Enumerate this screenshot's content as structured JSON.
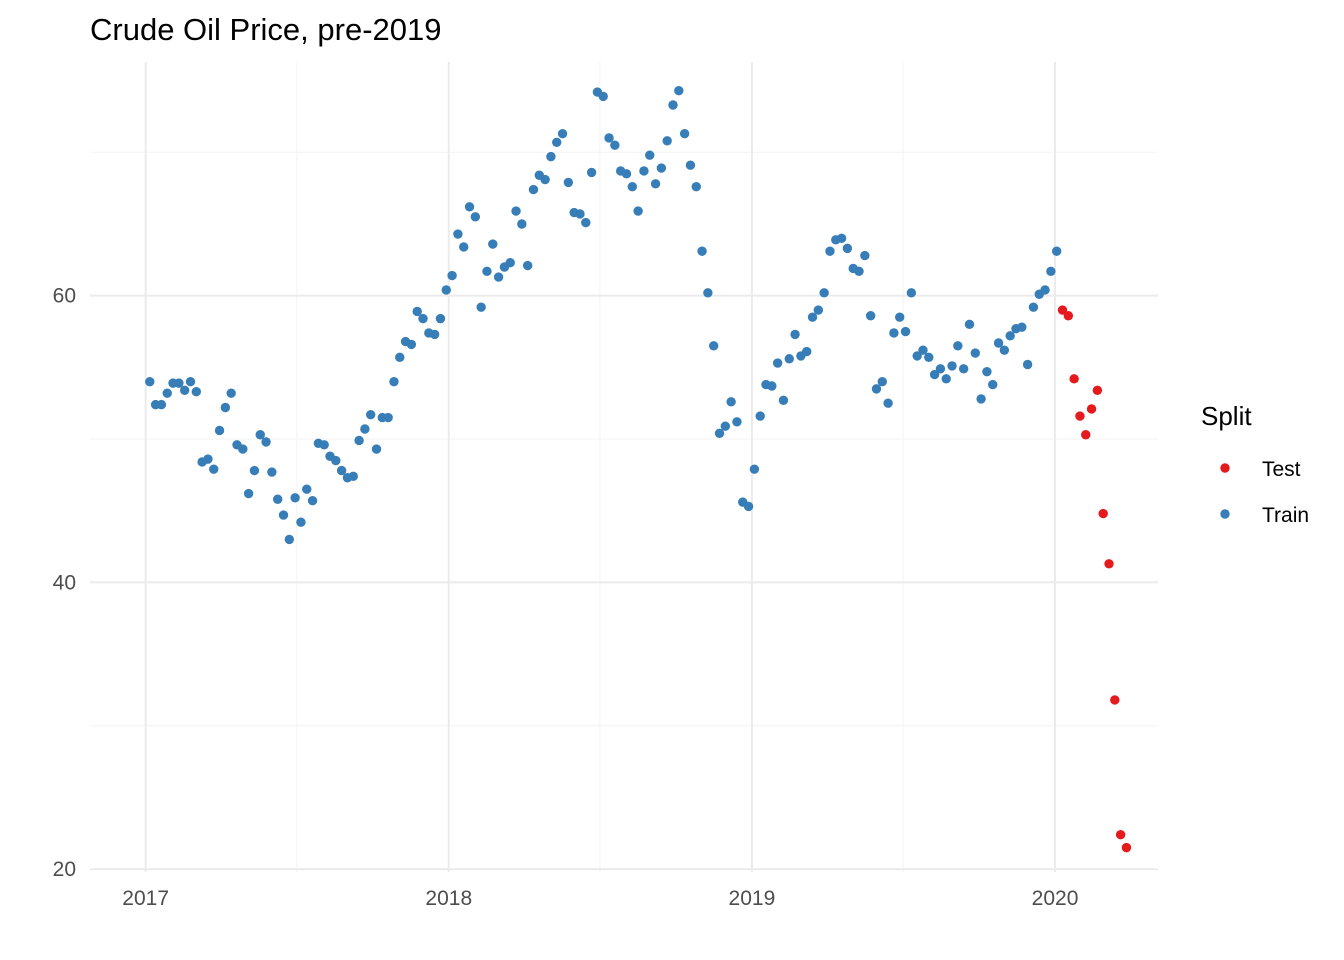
{
  "chart_data": {
    "type": "scatter",
    "title": "Crude Oil Price, pre-2019",
    "xlabel": "",
    "ylabel": "",
    "x_axis": {
      "type": "date",
      "range": [
        "2016-10-26",
        "2020-05-04"
      ],
      "ticks": [
        "2017",
        "2018",
        "2019",
        "2020"
      ]
    },
    "y_axis": {
      "range": [
        19.8,
        76.3
      ],
      "ticks": [
        20,
        40,
        60
      ]
    },
    "grid": true,
    "legend": {
      "title": "Split",
      "position": "right"
    },
    "series": [
      {
        "name": "Train",
        "color": "#377eb8",
        "points": [
          [
            "2017-01-06",
            54.0
          ],
          [
            "2017-01-13",
            52.4
          ],
          [
            "2017-01-20",
            52.4
          ],
          [
            "2017-01-27",
            53.2
          ],
          [
            "2017-02-03",
            53.9
          ],
          [
            "2017-02-10",
            53.9
          ],
          [
            "2017-02-17",
            53.4
          ],
          [
            "2017-02-24",
            54.0
          ],
          [
            "2017-03-03",
            53.3
          ],
          [
            "2017-03-10",
            48.4
          ],
          [
            "2017-03-17",
            48.6
          ],
          [
            "2017-03-24",
            47.9
          ],
          [
            "2017-03-31",
            50.6
          ],
          [
            "2017-04-07",
            52.2
          ],
          [
            "2017-04-14",
            53.2
          ],
          [
            "2017-04-21",
            49.6
          ],
          [
            "2017-04-28",
            49.3
          ],
          [
            "2017-05-05",
            46.2
          ],
          [
            "2017-05-12",
            47.8
          ],
          [
            "2017-05-19",
            50.3
          ],
          [
            "2017-05-26",
            49.8
          ],
          [
            "2017-06-02",
            47.7
          ],
          [
            "2017-06-09",
            45.8
          ],
          [
            "2017-06-16",
            44.7
          ],
          [
            "2017-06-23",
            43.0
          ],
          [
            "2017-06-30",
            45.9
          ],
          [
            "2017-07-07",
            44.2
          ],
          [
            "2017-07-14",
            46.5
          ],
          [
            "2017-07-21",
            45.7
          ],
          [
            "2017-07-28",
            49.7
          ],
          [
            "2017-08-04",
            49.6
          ],
          [
            "2017-08-11",
            48.8
          ],
          [
            "2017-08-18",
            48.5
          ],
          [
            "2017-08-25",
            47.8
          ],
          [
            "2017-09-01",
            47.3
          ],
          [
            "2017-09-08",
            47.4
          ],
          [
            "2017-09-15",
            49.9
          ],
          [
            "2017-09-22",
            50.7
          ],
          [
            "2017-09-29",
            51.7
          ],
          [
            "2017-10-06",
            49.3
          ],
          [
            "2017-10-13",
            51.5
          ],
          [
            "2017-10-20",
            51.5
          ],
          [
            "2017-10-27",
            54.0
          ],
          [
            "2017-11-03",
            55.7
          ],
          [
            "2017-11-10",
            56.8
          ],
          [
            "2017-11-17",
            56.6
          ],
          [
            "2017-11-24",
            58.9
          ],
          [
            "2017-12-01",
            58.4
          ],
          [
            "2017-12-08",
            57.4
          ],
          [
            "2017-12-15",
            57.3
          ],
          [
            "2017-12-22",
            58.4
          ],
          [
            "2017-12-29",
            60.4
          ],
          [
            "2018-01-05",
            61.4
          ],
          [
            "2018-01-12",
            64.3
          ],
          [
            "2018-01-19",
            63.4
          ],
          [
            "2018-01-26",
            66.2
          ],
          [
            "2018-02-02",
            65.5
          ],
          [
            "2018-02-09",
            59.2
          ],
          [
            "2018-02-16",
            61.7
          ],
          [
            "2018-02-23",
            63.6
          ],
          [
            "2018-03-02",
            61.3
          ],
          [
            "2018-03-09",
            62.0
          ],
          [
            "2018-03-16",
            62.3
          ],
          [
            "2018-03-23",
            65.9
          ],
          [
            "2018-03-30",
            65.0
          ],
          [
            "2018-04-06",
            62.1
          ],
          [
            "2018-04-13",
            67.4
          ],
          [
            "2018-04-20",
            68.4
          ],
          [
            "2018-04-27",
            68.1
          ],
          [
            "2018-05-04",
            69.7
          ],
          [
            "2018-05-11",
            70.7
          ],
          [
            "2018-05-18",
            71.3
          ],
          [
            "2018-05-25",
            67.9
          ],
          [
            "2018-06-01",
            65.8
          ],
          [
            "2018-06-08",
            65.7
          ],
          [
            "2018-06-15",
            65.1
          ],
          [
            "2018-06-22",
            68.6
          ],
          [
            "2018-06-29",
            74.2
          ],
          [
            "2018-07-06",
            73.9
          ],
          [
            "2018-07-13",
            71.0
          ],
          [
            "2018-07-20",
            70.5
          ],
          [
            "2018-07-27",
            68.7
          ],
          [
            "2018-08-03",
            68.5
          ],
          [
            "2018-08-10",
            67.6
          ],
          [
            "2018-08-17",
            65.9
          ],
          [
            "2018-08-24",
            68.7
          ],
          [
            "2018-08-31",
            69.8
          ],
          [
            "2018-09-07",
            67.8
          ],
          [
            "2018-09-14",
            68.9
          ],
          [
            "2018-09-21",
            70.8
          ],
          [
            "2018-09-28",
            73.3
          ],
          [
            "2018-10-05",
            74.3
          ],
          [
            "2018-10-12",
            71.3
          ],
          [
            "2018-10-19",
            69.1
          ],
          [
            "2018-10-26",
            67.6
          ],
          [
            "2018-11-02",
            63.1
          ],
          [
            "2018-11-09",
            60.2
          ],
          [
            "2018-11-16",
            56.5
          ],
          [
            "2018-11-23",
            50.4
          ],
          [
            "2018-11-30",
            50.9
          ],
          [
            "2018-12-07",
            52.6
          ],
          [
            "2018-12-14",
            51.2
          ],
          [
            "2018-12-21",
            45.6
          ],
          [
            "2018-12-28",
            45.3
          ],
          [
            "2019-01-04",
            47.9
          ],
          [
            "2019-01-11",
            51.6
          ],
          [
            "2019-01-18",
            53.8
          ],
          [
            "2019-01-25",
            53.7
          ],
          [
            "2019-02-01",
            55.3
          ],
          [
            "2019-02-08",
            52.7
          ],
          [
            "2019-02-15",
            55.6
          ],
          [
            "2019-02-22",
            57.3
          ],
          [
            "2019-03-01",
            55.8
          ],
          [
            "2019-03-08",
            56.1
          ],
          [
            "2019-03-15",
            58.5
          ],
          [
            "2019-03-22",
            59.0
          ],
          [
            "2019-03-29",
            60.2
          ],
          [
            "2019-04-05",
            63.1
          ],
          [
            "2019-04-12",
            63.9
          ],
          [
            "2019-04-19",
            64.0
          ],
          [
            "2019-04-26",
            63.3
          ],
          [
            "2019-05-03",
            61.9
          ],
          [
            "2019-05-10",
            61.7
          ],
          [
            "2019-05-17",
            62.8
          ],
          [
            "2019-05-24",
            58.6
          ],
          [
            "2019-05-31",
            53.5
          ],
          [
            "2019-06-07",
            54.0
          ],
          [
            "2019-06-14",
            52.5
          ],
          [
            "2019-06-21",
            57.4
          ],
          [
            "2019-06-28",
            58.5
          ],
          [
            "2019-07-05",
            57.5
          ],
          [
            "2019-07-12",
            60.2
          ],
          [
            "2019-07-19",
            55.8
          ],
          [
            "2019-07-26",
            56.2
          ],
          [
            "2019-08-02",
            55.7
          ],
          [
            "2019-08-09",
            54.5
          ],
          [
            "2019-08-16",
            54.9
          ],
          [
            "2019-08-23",
            54.2
          ],
          [
            "2019-08-30",
            55.1
          ],
          [
            "2019-09-06",
            56.5
          ],
          [
            "2019-09-13",
            54.9
          ],
          [
            "2019-09-20",
            58.0
          ],
          [
            "2019-09-27",
            56.0
          ],
          [
            "2019-10-04",
            52.8
          ],
          [
            "2019-10-11",
            54.7
          ],
          [
            "2019-10-18",
            53.8
          ],
          [
            "2019-10-25",
            56.7
          ],
          [
            "2019-11-01",
            56.2
          ],
          [
            "2019-11-08",
            57.2
          ],
          [
            "2019-11-15",
            57.7
          ],
          [
            "2019-11-22",
            57.8
          ],
          [
            "2019-11-29",
            55.2
          ],
          [
            "2019-12-06",
            59.2
          ],
          [
            "2019-12-13",
            60.1
          ],
          [
            "2019-12-20",
            60.4
          ],
          [
            "2019-12-27",
            61.7
          ],
          [
            "2020-01-03",
            63.1
          ]
        ]
      },
      {
        "name": "Test",
        "color": "#e41a1c",
        "points": [
          [
            "2020-01-10",
            59.0
          ],
          [
            "2020-01-17",
            58.6
          ],
          [
            "2020-01-24",
            54.2
          ],
          [
            "2020-01-31",
            51.6
          ],
          [
            "2020-02-07",
            50.3
          ],
          [
            "2020-02-14",
            52.1
          ],
          [
            "2020-02-21",
            53.4
          ],
          [
            "2020-02-28",
            44.8
          ],
          [
            "2020-03-06",
            41.3
          ],
          [
            "2020-03-13",
            31.8
          ],
          [
            "2020-03-20",
            22.4
          ],
          [
            "2020-03-27",
            21.5
          ]
        ]
      }
    ]
  }
}
